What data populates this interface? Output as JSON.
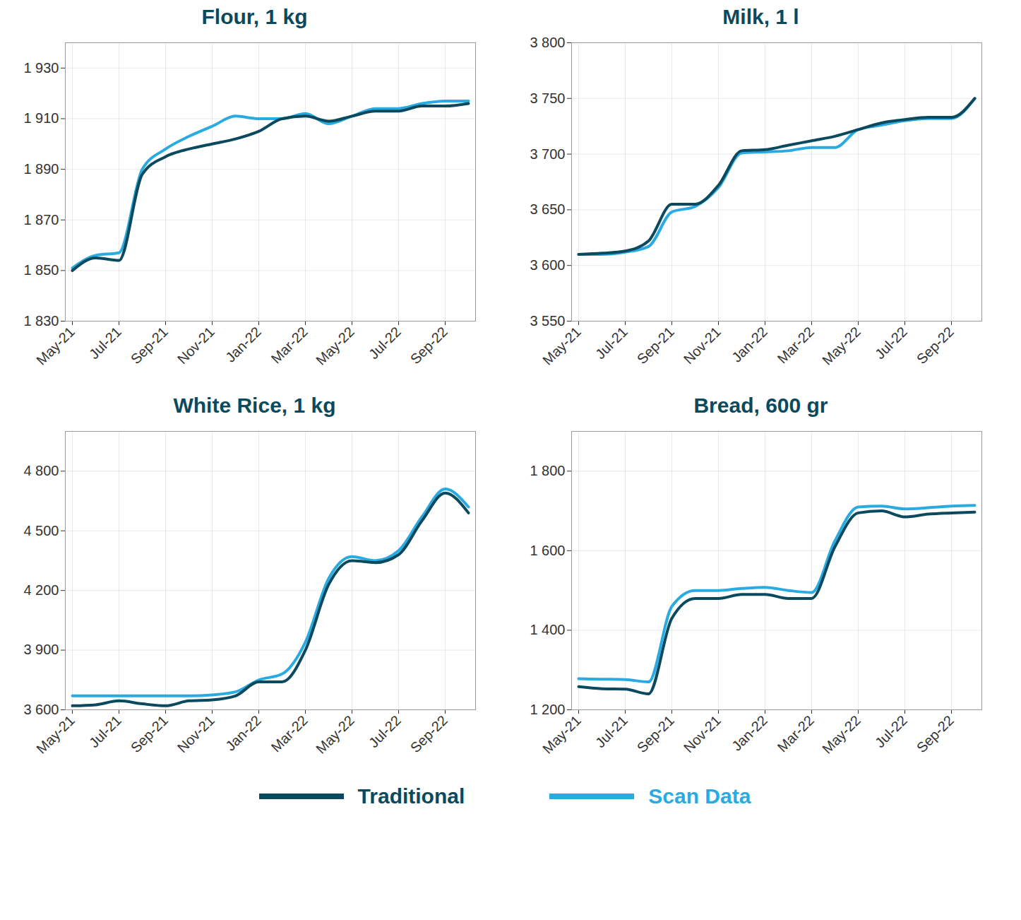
{
  "chart_data": [
    {
      "type": "line",
      "title": "Flour, 1 kg",
      "categories": [
        "May-21",
        null,
        "Jul-21",
        null,
        "Sep-21",
        null,
        "Nov-21",
        null,
        "Jan-22",
        null,
        "Mar-22",
        null,
        "May-22",
        null,
        "Jul-22",
        null,
        "Sep-22",
        null
      ],
      "series": [
        {
          "name": "Scan Data",
          "color": "#29abe2",
          "values": [
            1851,
            1856,
            1857,
            1890,
            1898,
            1903,
            1907,
            1911,
            1910,
            1910,
            1912,
            1908,
            1911,
            1914,
            1914,
            1916,
            1917,
            1917
          ]
        },
        {
          "name": "Traditional",
          "color": "#0b4a5e",
          "values": [
            1850,
            1855,
            1854,
            1888,
            1895,
            1898,
            1900,
            1902,
            1905,
            1910,
            1911,
            1909,
            1911,
            1913,
            1913,
            1915,
            1915,
            1916
          ]
        }
      ],
      "ylim": [
        1830,
        1940
      ],
      "yticks": [
        {
          "value": 1830,
          "label": "1 830"
        },
        {
          "value": 1850,
          "label": "1 850"
        },
        {
          "value": 1870,
          "label": "1 870"
        },
        {
          "value": 1890,
          "label": "1 890"
        },
        {
          "value": 1910,
          "label": "1 910"
        },
        {
          "value": 1930,
          "label": "1 930"
        }
      ],
      "grid": true,
      "legend": "bottom"
    },
    {
      "type": "line",
      "title": "Milk, 1 l",
      "categories": [
        "May-21",
        null,
        "Jul-21",
        null,
        "Sep-21",
        null,
        "Nov-21",
        null,
        "Jan-22",
        null,
        "Mar-22",
        null,
        "May-22",
        null,
        "Jul-22",
        null,
        "Sep-22",
        null
      ],
      "series": [
        {
          "name": "Scan Data",
          "color": "#29abe2",
          "values": [
            3610,
            3610,
            3612,
            3617,
            3648,
            3653,
            3670,
            3701,
            3702,
            3703,
            3706,
            3706,
            3722,
            3726,
            3730,
            3732,
            3732,
            3750
          ]
        },
        {
          "name": "Traditional",
          "color": "#0b4a5e",
          "values": [
            3610,
            3611,
            3613,
            3622,
            3655,
            3655,
            3672,
            3703,
            3704,
            3708,
            3712,
            3716,
            3722,
            3728,
            3731,
            3733,
            3733,
            3750
          ]
        }
      ],
      "ylim": [
        3550,
        3800
      ],
      "yticks": [
        {
          "value": 3550,
          "label": "3 550"
        },
        {
          "value": 3600,
          "label": "3 600"
        },
        {
          "value": 3650,
          "label": "3 650"
        },
        {
          "value": 3700,
          "label": "3 700"
        },
        {
          "value": 3750,
          "label": "3 750"
        },
        {
          "value": 3800,
          "label": "3 800"
        }
      ],
      "grid": true,
      "legend": "bottom"
    },
    {
      "type": "line",
      "title": "White Rice, 1 kg",
      "categories": [
        "May-21",
        null,
        "Jul-21",
        null,
        "Sep-21",
        null,
        "Nov-21",
        null,
        "Jan-22",
        null,
        "Mar-22",
        null,
        "May-22",
        null,
        "Jul-22",
        null,
        "Sep-22",
        null
      ],
      "series": [
        {
          "name": "Scan Data",
          "color": "#29abe2",
          "values": [
            3670,
            3670,
            3670,
            3670,
            3670,
            3670,
            3675,
            3690,
            3750,
            3780,
            3940,
            4260,
            4370,
            4350,
            4400,
            4570,
            4710,
            4620
          ]
        },
        {
          "name": "Traditional",
          "color": "#0b4a5e",
          "values": [
            3620,
            3625,
            3645,
            3630,
            3620,
            3645,
            3650,
            3670,
            3740,
            3740,
            3900,
            4230,
            4350,
            4340,
            4380,
            4550,
            4690,
            4590
          ]
        }
      ],
      "ylim": [
        3600,
        5000
      ],
      "yticks": [
        {
          "value": 3600,
          "label": "3 600"
        },
        {
          "value": 3900,
          "label": "3 900"
        },
        {
          "value": 4200,
          "label": "4 200"
        },
        {
          "value": 4500,
          "label": "4 500"
        },
        {
          "value": 4800,
          "label": "4 800"
        }
      ],
      "grid": true,
      "legend": "bottom"
    },
    {
      "type": "line",
      "title": "Bread, 600 gr",
      "categories": [
        "May-21",
        null,
        "Jul-21",
        null,
        "Sep-21",
        null,
        "Nov-21",
        null,
        "Jan-22",
        null,
        "Mar-22",
        null,
        "May-22",
        null,
        "Jul-22",
        null,
        "Sep-22",
        null
      ],
      "series": [
        {
          "name": "Scan Data",
          "color": "#29abe2",
          "values": [
            1278,
            1277,
            1276,
            1270,
            1460,
            1500,
            1500,
            1505,
            1508,
            1500,
            1495,
            1625,
            1710,
            1712,
            1705,
            1708,
            1712,
            1714
          ]
        },
        {
          "name": "Traditional",
          "color": "#0b4a5e",
          "values": [
            1258,
            1253,
            1252,
            1240,
            1430,
            1480,
            1480,
            1490,
            1490,
            1480,
            1480,
            1610,
            1695,
            1700,
            1685,
            1692,
            1695,
            1697
          ]
        }
      ],
      "ylim": [
        1200,
        1900
      ],
      "yticks": [
        {
          "value": 1200,
          "label": "1 200"
        },
        {
          "value": 1400,
          "label": "1 400"
        },
        {
          "value": 1600,
          "label": "1 600"
        },
        {
          "value": 1800,
          "label": "1 800"
        }
      ],
      "grid": true,
      "legend": "bottom"
    }
  ]
}
